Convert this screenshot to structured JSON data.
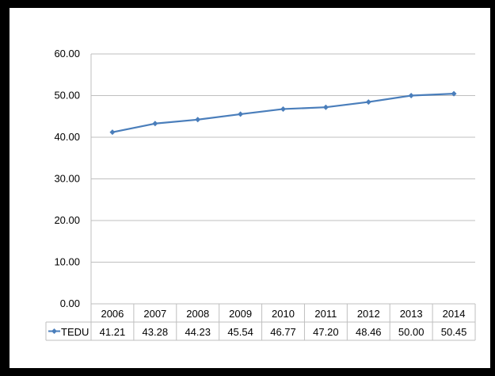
{
  "chart_data": {
    "type": "line",
    "categories": [
      "2006",
      "2007",
      "2008",
      "2009",
      "2010",
      "2011",
      "2012",
      "2013",
      "2014"
    ],
    "series": [
      {
        "name": "TEDU",
        "values": [
          41.21,
          43.28,
          44.23,
          45.54,
          46.77,
          47.2,
          48.46,
          50.0,
          50.45
        ]
      }
    ],
    "value_labels": [
      "41.21",
      "43.28",
      "44.23",
      "45.54",
      "46.77",
      "47.20",
      "48.46",
      "50.00",
      "50.45"
    ],
    "y_ticks": [
      "0.00",
      "10.00",
      "20.00",
      "30.00",
      "40.00",
      "50.00",
      "60.00"
    ],
    "ylim": [
      0,
      60
    ],
    "grid": true,
    "legend": "data table",
    "series_color": "#4a7ebb",
    "grid_color": "#bfbfbf"
  }
}
